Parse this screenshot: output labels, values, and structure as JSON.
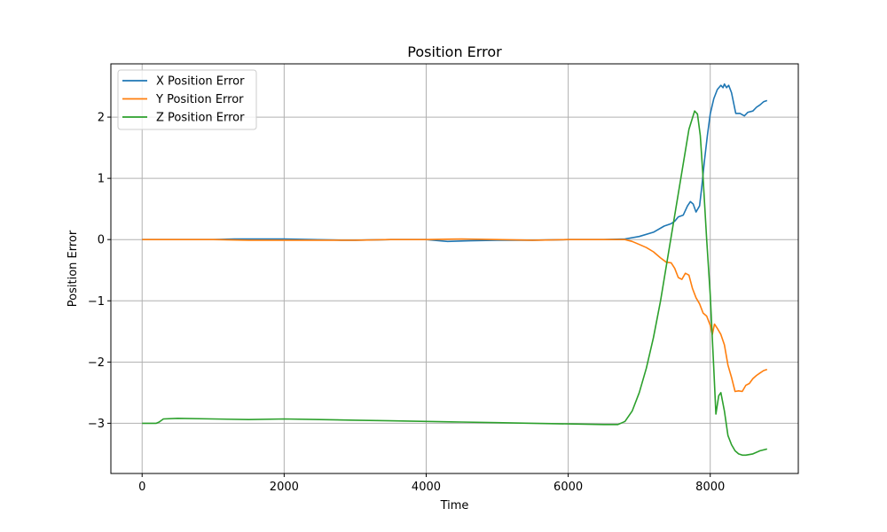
{
  "chart_data": {
    "type": "line",
    "title": "Position Error",
    "xlabel": "Time",
    "ylabel": "Position Error",
    "xlim": [
      -440,
      9240
    ],
    "ylim": [
      -3.82,
      2.87
    ],
    "x_ticks": [
      0,
      2000,
      4000,
      6000,
      8000
    ],
    "x_tick_labels": [
      "0",
      "2000",
      "4000",
      "6000",
      "8000"
    ],
    "y_ticks": [
      -3,
      -2,
      -1,
      0,
      1,
      2
    ],
    "y_tick_labels": [
      "−3",
      "−2",
      "−1",
      "0",
      "1",
      "2"
    ],
    "grid": true,
    "legend_position": "upper-left",
    "series": [
      {
        "name": "X Position Error",
        "color": "#1f77b4",
        "points": [
          [
            0,
            0
          ],
          [
            500,
            0
          ],
          [
            1000,
            0
          ],
          [
            1300,
            0.01
          ],
          [
            1600,
            0.01
          ],
          [
            2000,
            0.01
          ],
          [
            2400,
            0
          ],
          [
            2800,
            -0.01
          ],
          [
            3000,
            -0.01
          ],
          [
            3500,
            0
          ],
          [
            4000,
            0
          ],
          [
            4300,
            -0.03
          ],
          [
            4600,
            -0.02
          ],
          [
            5000,
            -0.01
          ],
          [
            5500,
            -0.01
          ],
          [
            6000,
            0
          ],
          [
            6500,
            0
          ],
          [
            6800,
            0.01
          ],
          [
            7000,
            0.05
          ],
          [
            7200,
            0.12
          ],
          [
            7350,
            0.22
          ],
          [
            7450,
            0.26
          ],
          [
            7500,
            0.3
          ],
          [
            7550,
            0.37
          ],
          [
            7620,
            0.4
          ],
          [
            7680,
            0.55
          ],
          [
            7720,
            0.62
          ],
          [
            7760,
            0.58
          ],
          [
            7800,
            0.45
          ],
          [
            7850,
            0.55
          ],
          [
            7880,
            0.85
          ],
          [
            7920,
            1.3
          ],
          [
            7960,
            1.7
          ],
          [
            8000,
            2.05
          ],
          [
            8050,
            2.3
          ],
          [
            8100,
            2.45
          ],
          [
            8150,
            2.52
          ],
          [
            8180,
            2.48
          ],
          [
            8200,
            2.54
          ],
          [
            8230,
            2.48
          ],
          [
            8260,
            2.52
          ],
          [
            8300,
            2.4
          ],
          [
            8360,
            2.06
          ],
          [
            8420,
            2.06
          ],
          [
            8480,
            2.02
          ],
          [
            8530,
            2.08
          ],
          [
            8600,
            2.1
          ],
          [
            8650,
            2.16
          ],
          [
            8700,
            2.2
          ],
          [
            8750,
            2.25
          ],
          [
            8800,
            2.27
          ]
        ]
      },
      {
        "name": "Y Position Error",
        "color": "#ff7f0e",
        "points": [
          [
            0,
            0
          ],
          [
            500,
            0
          ],
          [
            1000,
            0
          ],
          [
            1500,
            -0.01
          ],
          [
            2000,
            -0.01
          ],
          [
            2500,
            -0.01
          ],
          [
            3000,
            -0.01
          ],
          [
            3500,
            0
          ],
          [
            4000,
            0
          ],
          [
            4500,
            0.01
          ],
          [
            5000,
            0
          ],
          [
            5500,
            -0.01
          ],
          [
            6000,
            0
          ],
          [
            6500,
            0
          ],
          [
            6800,
            0
          ],
          [
            6900,
            -0.03
          ],
          [
            7000,
            -0.08
          ],
          [
            7100,
            -0.13
          ],
          [
            7200,
            -0.2
          ],
          [
            7300,
            -0.3
          ],
          [
            7380,
            -0.37
          ],
          [
            7450,
            -0.38
          ],
          [
            7500,
            -0.47
          ],
          [
            7550,
            -0.62
          ],
          [
            7600,
            -0.65
          ],
          [
            7650,
            -0.55
          ],
          [
            7700,
            -0.58
          ],
          [
            7750,
            -0.8
          ],
          [
            7800,
            -0.95
          ],
          [
            7850,
            -1.05
          ],
          [
            7900,
            -1.2
          ],
          [
            7950,
            -1.25
          ],
          [
            8000,
            -1.4
          ],
          [
            8030,
            -1.55
          ],
          [
            8060,
            -1.38
          ],
          [
            8100,
            -1.45
          ],
          [
            8150,
            -1.55
          ],
          [
            8200,
            -1.72
          ],
          [
            8250,
            -2.05
          ],
          [
            8300,
            -2.25
          ],
          [
            8350,
            -2.48
          ],
          [
            8400,
            -2.47
          ],
          [
            8450,
            -2.48
          ],
          [
            8500,
            -2.38
          ],
          [
            8550,
            -2.35
          ],
          [
            8600,
            -2.27
          ],
          [
            8650,
            -2.22
          ],
          [
            8700,
            -2.18
          ],
          [
            8750,
            -2.14
          ],
          [
            8800,
            -2.12
          ]
        ]
      },
      {
        "name": "Z Position Error",
        "color": "#2ca02c",
        "points": [
          [
            0,
            -3
          ],
          [
            200,
            -3
          ],
          [
            240,
            -2.98
          ],
          [
            300,
            -2.93
          ],
          [
            500,
            -2.92
          ],
          [
            1000,
            -2.93
          ],
          [
            1500,
            -2.94
          ],
          [
            2000,
            -2.93
          ],
          [
            2500,
            -2.94
          ],
          [
            3000,
            -2.95
          ],
          [
            3500,
            -2.96
          ],
          [
            4000,
            -2.97
          ],
          [
            4500,
            -2.98
          ],
          [
            5000,
            -2.99
          ],
          [
            5500,
            -3
          ],
          [
            6000,
            -3.01
          ],
          [
            6500,
            -3.02
          ],
          [
            6700,
            -3.02
          ],
          [
            6800,
            -2.97
          ],
          [
            6900,
            -2.8
          ],
          [
            7000,
            -2.5
          ],
          [
            7100,
            -2.1
          ],
          [
            7200,
            -1.6
          ],
          [
            7300,
            -1.0
          ],
          [
            7400,
            -0.3
          ],
          [
            7500,
            0.4
          ],
          [
            7600,
            1.1
          ],
          [
            7700,
            1.8
          ],
          [
            7780,
            2.1
          ],
          [
            7820,
            2.05
          ],
          [
            7860,
            1.7
          ],
          [
            7900,
            1.0
          ],
          [
            7950,
            0.0
          ],
          [
            8000,
            -0.9
          ],
          [
            8050,
            -2.1
          ],
          [
            8080,
            -2.85
          ],
          [
            8120,
            -2.55
          ],
          [
            8150,
            -2.5
          ],
          [
            8200,
            -2.8
          ],
          [
            8250,
            -3.2
          ],
          [
            8300,
            -3.35
          ],
          [
            8350,
            -3.45
          ],
          [
            8400,
            -3.5
          ],
          [
            8450,
            -3.52
          ],
          [
            8500,
            -3.52
          ],
          [
            8600,
            -3.5
          ],
          [
            8700,
            -3.45
          ],
          [
            8800,
            -3.42
          ]
        ]
      }
    ]
  }
}
